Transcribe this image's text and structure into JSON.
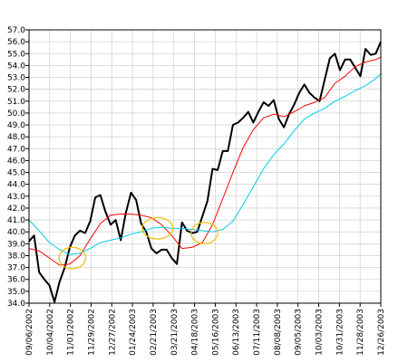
{
  "chart_data": {
    "type": "line",
    "title": "",
    "xlabel": "",
    "ylabel": "",
    "grid": true,
    "legend": "none",
    "ylim": [
      34.0,
      57.0
    ],
    "yticks": [
      "34.0",
      "35.0",
      "36.0",
      "37.0",
      "38.0",
      "39.0",
      "40.0",
      "41.0",
      "42.0",
      "43.0",
      "44.0",
      "45.0",
      "46.0",
      "47.0",
      "48.0",
      "49.0",
      "50.0",
      "51.0",
      "52.0",
      "53.0",
      "54.0",
      "55.0",
      "56.0",
      "57.0"
    ],
    "xticks": [
      "09/06/2002",
      "10/04/2002",
      "11/01/2002",
      "11/29/2002",
      "12/27/2002",
      "01/24/2003",
      "02/21/2003",
      "03/21/2003",
      "04/18/2003",
      "05/16/2003",
      "06/13/2003",
      "07/11/2003",
      "08/08/2003",
      "09/05/2003",
      "10/03/2003",
      "10/31/2003",
      "11/28/2003",
      "12/26/2003"
    ],
    "series": [
      {
        "color": "#000000",
        "values": [
          [
            0,
            39.2
          ],
          [
            1,
            39.7
          ],
          [
            2,
            36.6
          ],
          [
            3,
            36.0
          ],
          [
            4,
            35.5
          ],
          [
            5,
            34.1
          ],
          [
            6,
            35.8
          ],
          [
            7,
            37.0
          ],
          [
            8,
            38.7
          ],
          [
            9,
            39.7
          ],
          [
            10,
            40.1
          ],
          [
            11,
            39.9
          ],
          [
            12,
            40.9
          ],
          [
            13,
            42.9
          ],
          [
            14,
            43.1
          ],
          [
            15,
            41.7
          ],
          [
            16,
            40.6
          ],
          [
            17,
            41.0
          ],
          [
            18,
            39.3
          ],
          [
            19,
            41.6
          ],
          [
            20,
            43.3
          ],
          [
            21,
            42.7
          ],
          [
            22,
            40.7
          ],
          [
            23,
            40.0
          ],
          [
            24,
            38.6
          ],
          [
            25,
            38.2
          ],
          [
            26,
            38.5
          ],
          [
            27,
            38.5
          ],
          [
            28,
            37.8
          ],
          [
            29,
            37.3
          ],
          [
            30,
            40.8
          ],
          [
            31,
            40.1
          ],
          [
            32,
            39.9
          ],
          [
            33,
            40.0
          ],
          [
            34,
            41.3
          ],
          [
            35,
            42.6
          ],
          [
            36,
            45.3
          ],
          [
            37,
            45.2
          ],
          [
            38,
            46.8
          ],
          [
            39,
            46.8
          ],
          [
            40,
            49.0
          ],
          [
            41,
            49.2
          ],
          [
            42,
            49.6
          ],
          [
            43,
            50.1
          ],
          [
            44,
            49.2
          ],
          [
            45,
            50.1
          ],
          [
            46,
            50.9
          ],
          [
            47,
            50.6
          ],
          [
            48,
            51.1
          ],
          [
            49,
            49.5
          ],
          [
            50,
            48.8
          ],
          [
            51,
            49.9
          ],
          [
            52,
            50.7
          ],
          [
            53,
            51.7
          ],
          [
            54,
            52.4
          ],
          [
            55,
            51.7
          ],
          [
            56,
            51.3
          ],
          [
            57,
            51.0
          ],
          [
            58,
            52.8
          ],
          [
            59,
            54.6
          ],
          [
            60,
            55.0
          ],
          [
            61,
            53.6
          ],
          [
            62,
            54.5
          ],
          [
            63,
            54.5
          ],
          [
            64,
            53.8
          ],
          [
            65,
            53.1
          ],
          [
            66,
            55.4
          ],
          [
            67,
            54.9
          ],
          [
            68,
            55.0
          ],
          [
            69,
            56.0
          ]
        ]
      },
      {
        "color": "#ff0000",
        "values": [
          [
            0,
            38.6
          ],
          [
            2,
            38.4
          ],
          [
            4,
            37.8
          ],
          [
            6,
            37.2
          ],
          [
            8,
            37.3
          ],
          [
            10,
            38.0
          ],
          [
            12,
            39.4
          ],
          [
            14,
            40.7
          ],
          [
            16,
            41.4
          ],
          [
            18,
            41.5
          ],
          [
            20,
            41.5
          ],
          [
            22,
            41.4
          ],
          [
            24,
            41.2
          ],
          [
            26,
            40.6
          ],
          [
            28,
            39.7
          ],
          [
            30,
            38.6
          ],
          [
            32,
            38.7
          ],
          [
            34,
            39.1
          ],
          [
            36,
            40.6
          ],
          [
            38,
            42.8
          ],
          [
            40,
            45.0
          ],
          [
            42,
            47.1
          ],
          [
            44,
            48.6
          ],
          [
            46,
            49.6
          ],
          [
            48,
            49.9
          ],
          [
            50,
            49.7
          ],
          [
            52,
            50.1
          ],
          [
            54,
            50.6
          ],
          [
            56,
            50.9
          ],
          [
            58,
            51.3
          ],
          [
            60,
            52.5
          ],
          [
            62,
            53.1
          ],
          [
            64,
            53.9
          ],
          [
            66,
            54.3
          ],
          [
            68,
            54.5
          ],
          [
            69,
            54.7
          ]
        ]
      },
      {
        "color": "#00ccee",
        "values": [
          [
            0,
            41.0
          ],
          [
            2,
            40.1
          ],
          [
            4,
            39.1
          ],
          [
            6,
            38.5
          ],
          [
            8,
            38.1
          ],
          [
            10,
            38.2
          ],
          [
            12,
            38.6
          ],
          [
            14,
            39.1
          ],
          [
            16,
            39.3
          ],
          [
            18,
            39.5
          ],
          [
            20,
            39.8
          ],
          [
            22,
            40.0
          ],
          [
            24,
            40.3
          ],
          [
            26,
            40.4
          ],
          [
            28,
            40.3
          ],
          [
            30,
            40.3
          ],
          [
            32,
            40.2
          ],
          [
            34,
            40.1
          ],
          [
            36,
            40.0
          ],
          [
            38,
            40.2
          ],
          [
            40,
            40.9
          ],
          [
            42,
            42.3
          ],
          [
            44,
            43.8
          ],
          [
            46,
            45.3
          ],
          [
            48,
            46.5
          ],
          [
            50,
            47.4
          ],
          [
            52,
            48.5
          ],
          [
            54,
            49.5
          ],
          [
            56,
            50.0
          ],
          [
            58,
            50.4
          ],
          [
            60,
            51.0
          ],
          [
            62,
            51.4
          ],
          [
            64,
            51.9
          ],
          [
            66,
            52.3
          ],
          [
            68,
            52.9
          ],
          [
            69,
            53.3
          ]
        ]
      }
    ],
    "annotations": [
      {
        "shape": "ellipse",
        "color": "#f0c000",
        "x": 8.5,
        "y": 37.8,
        "rx": 2.6,
        "ry": 0.9
      },
      {
        "shape": "ellipse",
        "color": "#f0c000",
        "x": 25.2,
        "y": 40.3,
        "rx": 3.0,
        "ry": 0.9
      },
      {
        "shape": "ellipse",
        "color": "#f0c000",
        "x": 34.4,
        "y": 39.9,
        "rx": 2.6,
        "ry": 0.9
      }
    ]
  }
}
